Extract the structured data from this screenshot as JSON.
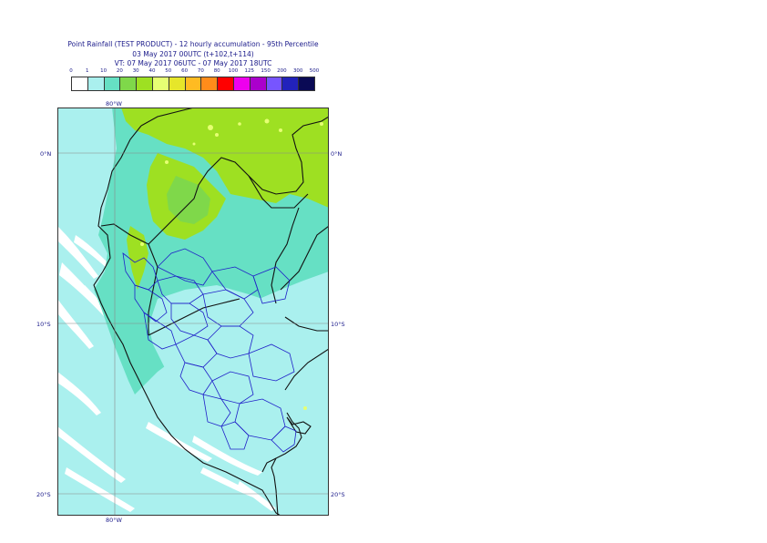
{
  "title": {
    "line1": "Point Rainfall (TEST PRODUCT) - 12 hourly accumulation - 95th Percentile",
    "line2": "03 May 2017 00UTC (t+102,t+114)",
    "line3": "VT: 07 May 2017 06UTC - 07 May 2017 18UTC"
  },
  "colorbar": {
    "ticks": [
      "0",
      "1",
      "10",
      "20",
      "30",
      "40",
      "50",
      "60",
      "70",
      "80",
      "100",
      "125",
      "150",
      "200",
      "300",
      "500"
    ],
    "colors": [
      "#ffffff",
      "#aaf0ee",
      "#66e0c4",
      "#7fd84a",
      "#9ee022",
      "#e6ff73",
      "#e6e62a",
      "#ffbb22",
      "#ff8c1a",
      "#ff0000",
      "#ee00ee",
      "#aa00cc",
      "#7755ff",
      "#2222bb",
      "#0a0a55"
    ]
  },
  "axes": {
    "top_lon": "80°W",
    "bottom_lon": "80°W",
    "lat_0": "0°N",
    "lat_10": "10°S",
    "lat_20": "20°S"
  },
  "map_colors": {
    "ocean_light": "#aaf0ee",
    "ocean_white": "#ffffff",
    "teal": "#66e0c4",
    "green": "#9ee022",
    "olive": "#7fd84a",
    "yellow": "#e6ff73",
    "border": "#111111",
    "admin": "#1f1fc8"
  }
}
